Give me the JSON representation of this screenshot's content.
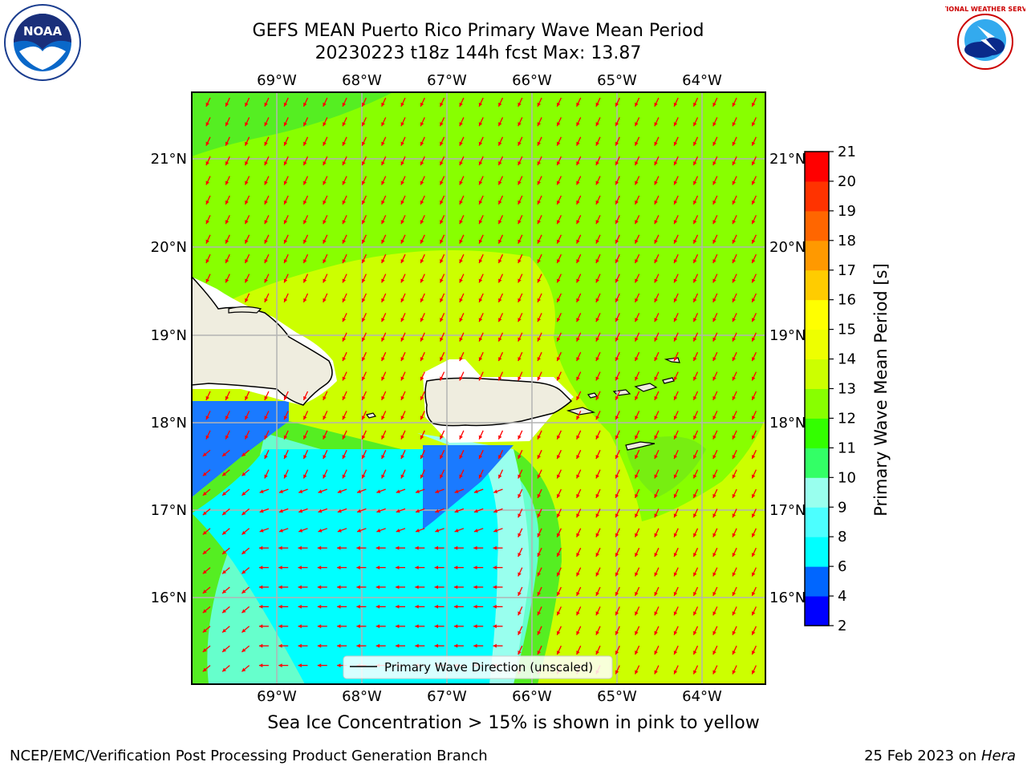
{
  "title": {
    "line1": "GEFS MEAN Puerto Rico Primary Wave Mean Period",
    "line2": "20230223 t18z 144h fcst   Max: 13.87"
  },
  "map": {
    "lon_labels": [
      "69°W",
      "68°W",
      "67°W",
      "66°W",
      "65°W",
      "64°W"
    ],
    "lat_labels": [
      "21°N",
      "20°N",
      "19°N",
      "18°N",
      "17°N",
      "16°N"
    ],
    "legend_text": "Primary Wave Direction (unscaled)",
    "colors": {
      "land": "#efeddf",
      "arrow": "#ff0000",
      "grid": "#b3b3b3"
    }
  },
  "colorbar": {
    "label": "Primary Wave Mean Period [s]",
    "ticks": [
      "2",
      "4",
      "6",
      "8",
      "9",
      "10",
      "11",
      "12",
      "13",
      "14",
      "15",
      "16",
      "17",
      "18",
      "19",
      "20",
      "21"
    ],
    "colors": [
      "#0000ff",
      "#0066ff",
      "#00ffff",
      "#4cffff",
      "#99ffee",
      "#33ff66",
      "#33ff00",
      "#88ff00",
      "#ccff00",
      "#eeff00",
      "#ffff00",
      "#ffcc00",
      "#ff9900",
      "#ff6600",
      "#ff3300",
      "#ff0000"
    ]
  },
  "caption": "Sea Ice Concentration > 15% is shown in pink to yellow",
  "footer": {
    "left": "NCEP/EMC/Verification Post Processing Product Generation Branch",
    "right_prefix": "25 Feb 2023 on ",
    "right_host": "Hera"
  },
  "logos": {
    "noaa_text": "NOAA",
    "nws_text": "NATIONAL WEATHER SERVICE"
  }
}
